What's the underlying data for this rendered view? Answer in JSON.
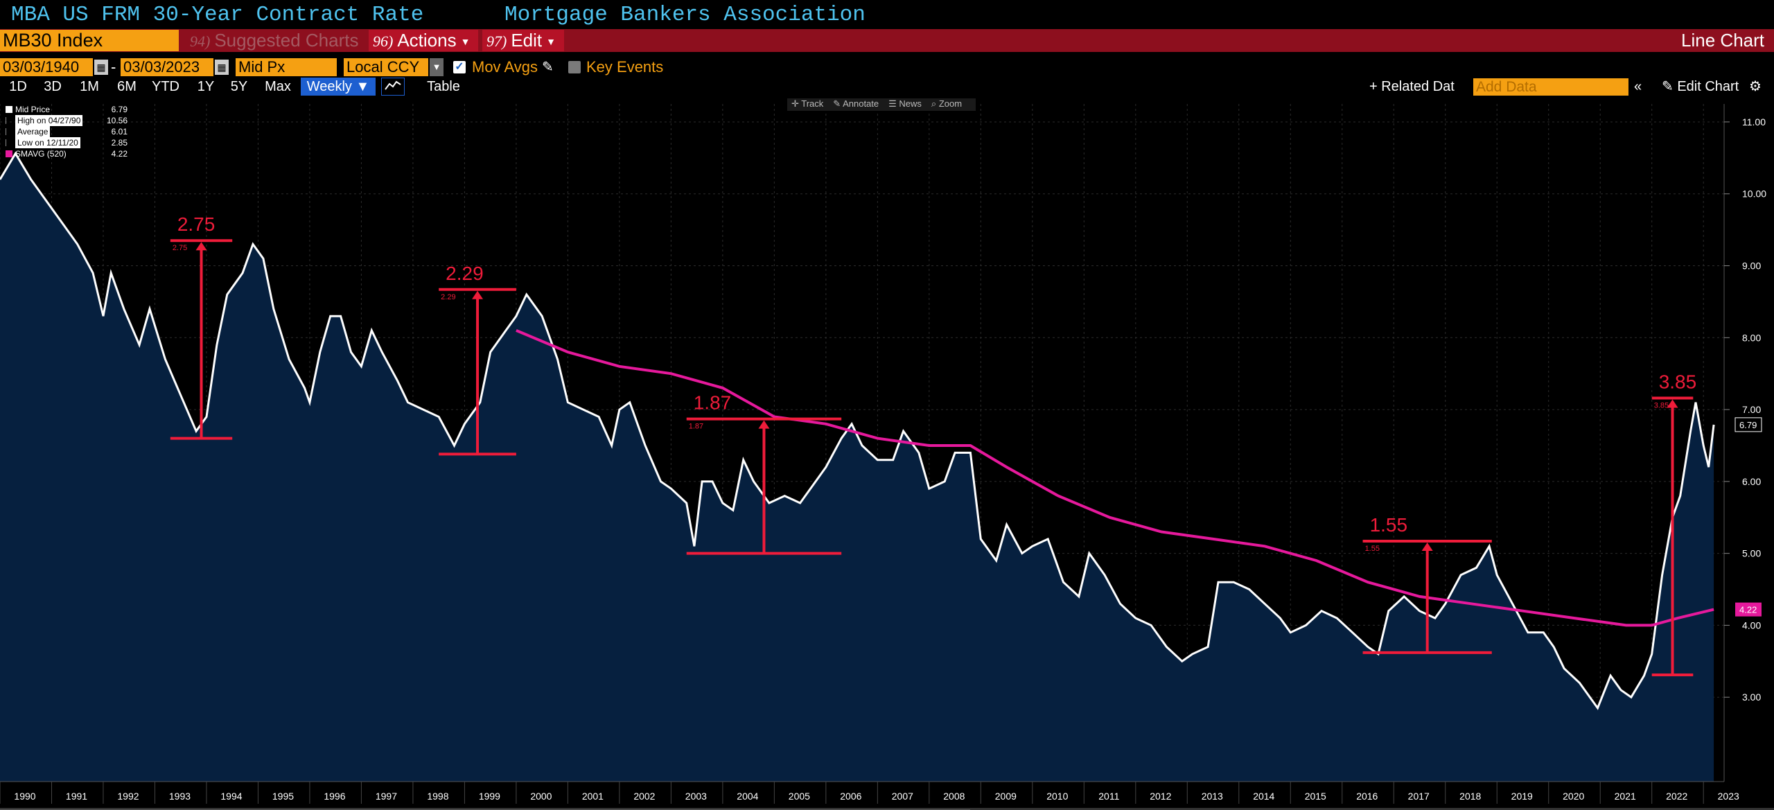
{
  "header": {
    "title": "MBA US FRM 30-Year Contract Rate",
    "source": "Mortgage Bankers Association"
  },
  "toolbar": {
    "ticker": "MB30 Index",
    "suggested": {
      "num": "94)",
      "label": "Suggested Charts"
    },
    "actions": {
      "num": "96)",
      "label": "Actions"
    },
    "edit": {
      "num": "97)",
      "label": "Edit"
    },
    "chart_type": "Line Chart"
  },
  "controls": {
    "start_date": "03/03/1940",
    "separator": "-",
    "end_date": "03/03/2023",
    "price_field": "Mid Px",
    "currency": "Local CCY",
    "mov_avgs_label": "Mov Avgs",
    "mov_avgs_checked": true,
    "key_events_label": "Key Events",
    "key_events_checked": false
  },
  "ranges": [
    "1D",
    "3D",
    "1M",
    "6M",
    "YTD",
    "1Y",
    "5Y",
    "Max"
  ],
  "frequency": "Weekly",
  "table_label": "Table",
  "right_tools": {
    "related": "+ Related Dat",
    "add_data_placeholder": "Add Data",
    "edit_chart": "Edit Chart"
  },
  "overlay_tools": [
    "Track",
    "Annotate",
    "News",
    "Zoom"
  ],
  "legend": [
    {
      "name": "Mid Price",
      "value": "6.79",
      "color": "#ffffff"
    },
    {
      "name": "High on 04/27/90",
      "value": "10.56",
      "color": ""
    },
    {
      "name": "Average",
      "value": "6.01",
      "color": ""
    },
    {
      "name": "Low on 12/11/20",
      "value": "2.85",
      "color": ""
    },
    {
      "name": "SMAVG (520)",
      "value": "4.22",
      "color": "#e6199c"
    }
  ],
  "chart_data": {
    "type": "area",
    "x_start": 1990.0,
    "x_end": 2023.4,
    "ylim": [
      2.0,
      11.25
    ],
    "yticks": [
      "11.00",
      "10.00",
      "9.00",
      "8.00",
      "7.00",
      "6.00",
      "5.00",
      "4.00",
      "3.00"
    ],
    "xticks": [
      "1990",
      "1991",
      "1992",
      "1993",
      "1994",
      "1995",
      "1996",
      "1997",
      "1998",
      "1999",
      "2000",
      "2001",
      "2002",
      "2003",
      "2004",
      "2005",
      "2006",
      "2007",
      "2008",
      "2009",
      "2010",
      "2011",
      "2012",
      "2013",
      "2014",
      "2015",
      "2016",
      "2017",
      "2018",
      "2019",
      "2020",
      "2021",
      "2022",
      "2023"
    ],
    "series": [
      {
        "name": "Mid Price",
        "color": "#ffffff",
        "fill": "#06203f",
        "points": [
          [
            1990.0,
            10.2
          ],
          [
            1990.3,
            10.56
          ],
          [
            1990.6,
            10.2
          ],
          [
            1990.9,
            9.9
          ],
          [
            1991.2,
            9.6
          ],
          [
            1991.5,
            9.3
          ],
          [
            1991.8,
            8.9
          ],
          [
            1992.0,
            8.3
          ],
          [
            1992.15,
            8.9
          ],
          [
            1992.4,
            8.4
          ],
          [
            1992.7,
            7.9
          ],
          [
            1992.9,
            8.4
          ],
          [
            1993.2,
            7.7
          ],
          [
            1993.5,
            7.2
          ],
          [
            1993.8,
            6.7
          ],
          [
            1994.0,
            6.9
          ],
          [
            1994.2,
            7.9
          ],
          [
            1994.4,
            8.6
          ],
          [
            1994.7,
            8.9
          ],
          [
            1994.9,
            9.3
          ],
          [
            1995.1,
            9.1
          ],
          [
            1995.3,
            8.4
          ],
          [
            1995.6,
            7.7
          ],
          [
            1995.9,
            7.3
          ],
          [
            1996.0,
            7.1
          ],
          [
            1996.2,
            7.8
          ],
          [
            1996.4,
            8.3
          ],
          [
            1996.6,
            8.3
          ],
          [
            1996.8,
            7.8
          ],
          [
            1997.0,
            7.6
          ],
          [
            1997.2,
            8.1
          ],
          [
            1997.4,
            7.8
          ],
          [
            1997.7,
            7.4
          ],
          [
            1997.9,
            7.1
          ],
          [
            1998.2,
            7.0
          ],
          [
            1998.5,
            6.9
          ],
          [
            1998.8,
            6.5
          ],
          [
            1999.0,
            6.8
          ],
          [
            1999.3,
            7.1
          ],
          [
            1999.5,
            7.8
          ],
          [
            1999.8,
            8.1
          ],
          [
            2000.0,
            8.3
          ],
          [
            2000.2,
            8.6
          ],
          [
            2000.5,
            8.3
          ],
          [
            2000.8,
            7.7
          ],
          [
            2001.0,
            7.1
          ],
          [
            2001.3,
            7.0
          ],
          [
            2001.6,
            6.9
          ],
          [
            2001.85,
            6.5
          ],
          [
            2002.0,
            7.0
          ],
          [
            2002.2,
            7.1
          ],
          [
            2002.5,
            6.5
          ],
          [
            2002.8,
            6.0
          ],
          [
            2003.0,
            5.9
          ],
          [
            2003.3,
            5.7
          ],
          [
            2003.45,
            5.1
          ],
          [
            2003.6,
            6.0
          ],
          [
            2003.8,
            6.0
          ],
          [
            2004.0,
            5.7
          ],
          [
            2004.2,
            5.6
          ],
          [
            2004.4,
            6.3
          ],
          [
            2004.6,
            6.0
          ],
          [
            2004.9,
            5.7
          ],
          [
            2005.2,
            5.8
          ],
          [
            2005.5,
            5.7
          ],
          [
            2005.8,
            6.0
          ],
          [
            2006.0,
            6.2
          ],
          [
            2006.3,
            6.6
          ],
          [
            2006.5,
            6.8
          ],
          [
            2006.7,
            6.5
          ],
          [
            2007.0,
            6.3
          ],
          [
            2007.3,
            6.3
          ],
          [
            2007.5,
            6.7
          ],
          [
            2007.8,
            6.4
          ],
          [
            2008.0,
            5.9
          ],
          [
            2008.3,
            6.0
          ],
          [
            2008.5,
            6.4
          ],
          [
            2008.8,
            6.4
          ],
          [
            2009.0,
            5.2
          ],
          [
            2009.3,
            4.9
          ],
          [
            2009.5,
            5.4
          ],
          [
            2009.8,
            5.0
          ],
          [
            2010.0,
            5.1
          ],
          [
            2010.3,
            5.2
          ],
          [
            2010.6,
            4.6
          ],
          [
            2010.9,
            4.4
          ],
          [
            2011.1,
            5.0
          ],
          [
            2011.4,
            4.7
          ],
          [
            2011.7,
            4.3
          ],
          [
            2012.0,
            4.1
          ],
          [
            2012.3,
            4.0
          ],
          [
            2012.6,
            3.7
          ],
          [
            2012.9,
            3.5
          ],
          [
            2013.1,
            3.6
          ],
          [
            2013.4,
            3.7
          ],
          [
            2013.6,
            4.6
          ],
          [
            2013.9,
            4.6
          ],
          [
            2014.2,
            4.5
          ],
          [
            2014.5,
            4.3
          ],
          [
            2014.8,
            4.1
          ],
          [
            2015.0,
            3.9
          ],
          [
            2015.3,
            4.0
          ],
          [
            2015.6,
            4.2
          ],
          [
            2015.9,
            4.1
          ],
          [
            2016.2,
            3.9
          ],
          [
            2016.5,
            3.7
          ],
          [
            2016.7,
            3.6
          ],
          [
            2016.9,
            4.2
          ],
          [
            2017.2,
            4.4
          ],
          [
            2017.5,
            4.2
          ],
          [
            2017.8,
            4.1
          ],
          [
            2018.0,
            4.3
          ],
          [
            2018.3,
            4.7
          ],
          [
            2018.6,
            4.8
          ],
          [
            2018.85,
            5.1
          ],
          [
            2019.0,
            4.7
          ],
          [
            2019.3,
            4.3
          ],
          [
            2019.6,
            3.9
          ],
          [
            2019.9,
            3.9
          ],
          [
            2020.1,
            3.7
          ],
          [
            2020.3,
            3.4
          ],
          [
            2020.6,
            3.2
          ],
          [
            2020.95,
            2.85
          ],
          [
            2021.2,
            3.3
          ],
          [
            2021.4,
            3.1
          ],
          [
            2021.6,
            3.0
          ],
          [
            2021.85,
            3.3
          ],
          [
            2022.0,
            3.6
          ],
          [
            2022.2,
            4.7
          ],
          [
            2022.4,
            5.5
          ],
          [
            2022.55,
            5.8
          ],
          [
            2022.75,
            6.7
          ],
          [
            2022.85,
            7.1
          ],
          [
            2023.0,
            6.5
          ],
          [
            2023.1,
            6.2
          ],
          [
            2023.2,
            6.79
          ]
        ]
      },
      {
        "name": "SMAVG (520)",
        "color": "#e6199c",
        "points": [
          [
            2000.0,
            8.1
          ],
          [
            2001.0,
            7.8
          ],
          [
            2002.0,
            7.6
          ],
          [
            2003.0,
            7.5
          ],
          [
            2004.0,
            7.3
          ],
          [
            2005.0,
            6.9
          ],
          [
            2006.0,
            6.8
          ],
          [
            2007.0,
            6.6
          ],
          [
            2008.0,
            6.5
          ],
          [
            2008.8,
            6.5
          ],
          [
            2009.5,
            6.2
          ],
          [
            2010.5,
            5.8
          ],
          [
            2011.5,
            5.5
          ],
          [
            2012.5,
            5.3
          ],
          [
            2013.5,
            5.2
          ],
          [
            2014.5,
            5.1
          ],
          [
            2015.5,
            4.9
          ],
          [
            2016.5,
            4.6
          ],
          [
            2017.5,
            4.4
          ],
          [
            2018.5,
            4.3
          ],
          [
            2019.5,
            4.2
          ],
          [
            2020.5,
            4.1
          ],
          [
            2021.5,
            4.0
          ],
          [
            2022.0,
            4.0
          ],
          [
            2022.5,
            4.1
          ],
          [
            2023.2,
            4.22
          ]
        ]
      }
    ],
    "last_value_labels": [
      {
        "value": "6.79",
        "color": "#ffffff"
      },
      {
        "value": "4.22",
        "color": "#e6199c"
      }
    ],
    "annotations": [
      {
        "label": "2.75",
        "small": "2.75",
        "x0": 1993.3,
        "x1": 1994.5,
        "y_low": 6.6,
        "y_high": 9.35
      },
      {
        "label": "2.29",
        "small": "2.29",
        "x0": 1998.5,
        "x1": 2000.0,
        "y_low": 6.38,
        "y_high": 8.67
      },
      {
        "label": "1.87",
        "small": "1.87",
        "x0": 2003.3,
        "x1": 2006.3,
        "y_low": 5.0,
        "y_high": 6.87
      },
      {
        "label": "1.55",
        "small": "1.55",
        "x0": 2016.4,
        "x1": 2018.9,
        "y_low": 3.62,
        "y_high": 5.17
      },
      {
        "label": "3.85",
        "small": "3.85",
        "x0": 2022.0,
        "x1": 2022.8,
        "y_low": 3.31,
        "y_high": 7.16
      }
    ]
  }
}
